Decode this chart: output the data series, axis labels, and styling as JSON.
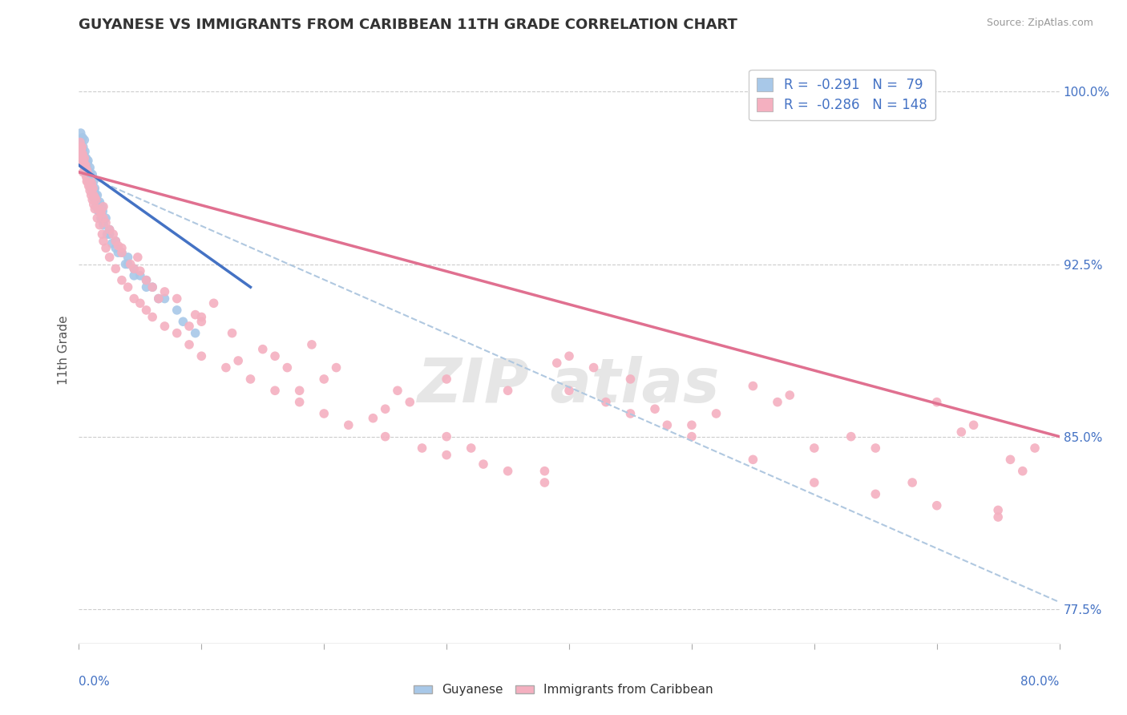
{
  "title": "GUYANESE VS IMMIGRANTS FROM CARIBBEAN 11TH GRADE CORRELATION CHART",
  "source": "Source: ZipAtlas.com",
  "ylabel": "11th Grade",
  "legend_r1": "-0.291",
  "legend_n1": "79",
  "legend_r2": "-0.286",
  "legend_n2": "148",
  "blue_color": "#a8c8e8",
  "pink_color": "#f4b0c0",
  "trend_blue": "#4472c4",
  "trend_pink": "#e07090",
  "trend_dashed_color": "#b0c8e0",
  "background": "#ffffff",
  "xmin": 0.0,
  "xmax": 80.0,
  "ymin": 76.0,
  "ymax": 101.5,
  "right_yticks": [
    100.0,
    92.5,
    85.0,
    77.5
  ],
  "blue_trend_x0": 0.0,
  "blue_trend_y0": 96.8,
  "blue_trend_x1": 14.0,
  "blue_trend_y1": 91.5,
  "pink_trend_x0": 0.0,
  "pink_trend_y0": 96.5,
  "pink_trend_x1": 80.0,
  "pink_trend_y1": 85.0,
  "dashed_trend_x0": 0.0,
  "dashed_trend_y0": 96.5,
  "dashed_trend_x1": 80.0,
  "dashed_trend_y1": 77.8,
  "scatter_blue_x": [
    0.1,
    0.15,
    0.2,
    0.25,
    0.3,
    0.35,
    0.4,
    0.45,
    0.5,
    0.55,
    0.6,
    0.65,
    0.7,
    0.75,
    0.8,
    0.9,
    1.0,
    1.1,
    1.2,
    1.3,
    1.5,
    1.7,
    1.9,
    2.2,
    2.5,
    3.0,
    3.5,
    4.0,
    4.5,
    5.0,
    5.5,
    6.0,
    7.0,
    8.0,
    9.5,
    0.2,
    0.3,
    0.4,
    0.5,
    0.6,
    0.7,
    0.8,
    0.9,
    1.0,
    1.1,
    1.2,
    1.4,
    1.6,
    1.8,
    2.0,
    2.3,
    2.7,
    3.2,
    3.8,
    4.5,
    5.5,
    6.5,
    8.5,
    0.25,
    0.45,
    0.65,
    0.85,
    1.05,
    1.35,
    1.65,
    1.95,
    0.15,
    0.35,
    0.55,
    0.75,
    0.95,
    1.25,
    2.0,
    3.0,
    0.6,
    0.9,
    1.5,
    2.5,
    4.0
  ],
  "scatter_blue_y": [
    97.5,
    98.2,
    97.8,
    97.3,
    98.0,
    97.6,
    97.2,
    97.9,
    97.4,
    96.8,
    97.1,
    96.5,
    96.9,
    97.0,
    96.3,
    96.7,
    96.2,
    96.4,
    96.1,
    95.8,
    95.5,
    95.2,
    95.0,
    94.5,
    94.0,
    93.5,
    93.0,
    92.8,
    92.3,
    92.0,
    91.8,
    91.5,
    91.0,
    90.5,
    89.5,
    97.2,
    97.5,
    97.0,
    96.8,
    96.6,
    96.4,
    96.2,
    96.0,
    95.8,
    95.6,
    95.4,
    95.0,
    94.8,
    94.5,
    94.2,
    93.8,
    93.4,
    93.0,
    92.5,
    92.0,
    91.5,
    91.0,
    90.0,
    97.4,
    97.1,
    96.7,
    96.3,
    96.0,
    95.5,
    95.1,
    94.8,
    97.8,
    97.3,
    96.9,
    96.5,
    96.1,
    95.7,
    94.3,
    93.2,
    97.0,
    96.5,
    95.2,
    93.8,
    92.5
  ],
  "scatter_pink_x": [
    0.1,
    0.15,
    0.2,
    0.25,
    0.3,
    0.35,
    0.4,
    0.45,
    0.5,
    0.55,
    0.6,
    0.65,
    0.7,
    0.75,
    0.8,
    0.85,
    0.9,
    1.0,
    1.1,
    1.2,
    1.3,
    1.5,
    1.7,
    1.9,
    2.0,
    2.2,
    2.5,
    3.0,
    3.5,
    4.0,
    4.5,
    5.0,
    5.5,
    6.0,
    7.0,
    8.0,
    9.0,
    10.0,
    12.0,
    14.0,
    16.0,
    18.0,
    20.0,
    22.0,
    25.0,
    28.0,
    30.0,
    33.0,
    35.0,
    38.0,
    40.0,
    43.0,
    45.0,
    48.0,
    50.0,
    55.0,
    60.0,
    65.0,
    70.0,
    75.0,
    0.2,
    0.4,
    0.6,
    0.8,
    1.0,
    1.4,
    1.8,
    2.5,
    3.5,
    5.0,
    7.0,
    10.0,
    15.0,
    20.0,
    25.0,
    30.0,
    38.0,
    45.0,
    52.0,
    60.0,
    68.0,
    75.0,
    0.3,
    0.5,
    0.7,
    0.9,
    1.2,
    1.6,
    2.2,
    3.0,
    4.5,
    6.5,
    9.0,
    13.0,
    18.0,
    24.0,
    32.0,
    42.0,
    55.0,
    70.0,
    0.25,
    0.55,
    0.85,
    1.15,
    2.0,
    3.5,
    6.0,
    10.0,
    17.0,
    27.0,
    40.0,
    58.0,
    73.0,
    78.0,
    0.15,
    0.45,
    0.75,
    1.05,
    1.8,
    3.2,
    5.5,
    9.5,
    16.0,
    26.0,
    39.0,
    57.0,
    72.0,
    0.35,
    0.65,
    1.3,
    2.8,
    4.2,
    8.0,
    12.5,
    21.0,
    35.0,
    50.0,
    65.0,
    77.0,
    0.95,
    2.0,
    4.8,
    11.0,
    19.0,
    30.0,
    47.0,
    63.0,
    76.0
  ],
  "scatter_pink_y": [
    97.8,
    97.5,
    97.2,
    97.6,
    97.3,
    97.0,
    96.8,
    97.1,
    96.5,
    96.8,
    96.3,
    96.6,
    96.1,
    96.4,
    95.9,
    96.2,
    95.7,
    95.5,
    95.3,
    95.1,
    94.9,
    94.5,
    94.2,
    93.8,
    93.5,
    93.2,
    92.8,
    92.3,
    91.8,
    91.5,
    91.0,
    90.8,
    90.5,
    90.2,
    89.8,
    89.5,
    89.0,
    88.5,
    88.0,
    87.5,
    87.0,
    86.5,
    86.0,
    85.5,
    85.0,
    84.5,
    84.2,
    83.8,
    83.5,
    83.0,
    87.0,
    86.5,
    86.0,
    85.5,
    85.0,
    84.0,
    83.0,
    82.5,
    82.0,
    81.5,
    97.5,
    96.9,
    96.5,
    96.1,
    95.8,
    95.3,
    94.7,
    94.0,
    93.2,
    92.2,
    91.3,
    90.2,
    88.8,
    87.5,
    86.2,
    85.0,
    83.5,
    87.5,
    86.0,
    84.5,
    83.0,
    81.8,
    97.2,
    96.7,
    96.3,
    95.9,
    95.5,
    94.9,
    94.3,
    93.5,
    92.3,
    91.0,
    89.8,
    88.3,
    87.0,
    85.8,
    84.5,
    88.0,
    87.2,
    86.5,
    97.0,
    96.6,
    96.2,
    95.8,
    94.5,
    93.0,
    91.5,
    90.0,
    88.0,
    86.5,
    88.5,
    86.8,
    85.5,
    84.5,
    97.3,
    96.8,
    96.4,
    96.0,
    94.8,
    93.3,
    91.8,
    90.3,
    88.5,
    87.0,
    88.2,
    86.5,
    85.2,
    96.5,
    96.1,
    95.4,
    93.8,
    92.5,
    91.0,
    89.5,
    88.0,
    87.0,
    85.5,
    84.5,
    83.5,
    96.2,
    95.0,
    92.8,
    90.8,
    89.0,
    87.5,
    86.2,
    85.0,
    84.0
  ]
}
